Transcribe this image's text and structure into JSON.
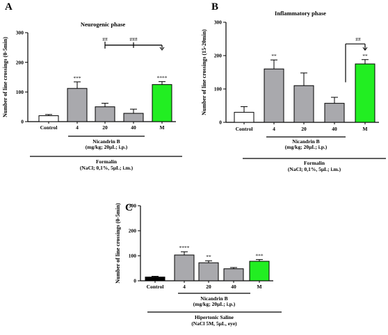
{
  "colors": {
    "control_A": "#ffffff",
    "control_C": "#000000",
    "nicandrin": "#a9a9ad",
    "morphine": "#22ee22",
    "axis": "#000000"
  },
  "chart_data": [
    {
      "type": "bar",
      "letter": "A",
      "title": "Neurogenic phase",
      "ylabel": "Number of line crossings (0-5min)",
      "ylim": [
        0,
        300
      ],
      "yticks": [
        0,
        100,
        200,
        300
      ],
      "categories": [
        "Control",
        "4",
        "20",
        "40",
        "M"
      ],
      "values": [
        20,
        112,
        50,
        28,
        125
      ],
      "errors": [
        4,
        22,
        12,
        14,
        10
      ],
      "significance": [
        "",
        "***",
        "",
        "",
        "****"
      ],
      "bar_colors": [
        "control_A",
        "nicandrin",
        "nicandrin",
        "nicandrin",
        "morphine"
      ],
      "group_label_1": [
        "Nicandrin B",
        "(mg/kg; 20µL; i.p.)"
      ],
      "group_label_2": [
        "Formalin",
        "(NaCl; 0,1%, 5µL; i.m.)"
      ],
      "brackets": [
        {
          "from": 2,
          "to": 4,
          "mark_positions": [
            2,
            3
          ],
          "labels": [
            "##",
            "###"
          ]
        }
      ]
    },
    {
      "type": "bar",
      "letter": "B",
      "title": "Inflammatory phase",
      "ylabel": "Number of line crossings (15-20min)",
      "ylim": [
        0,
        300
      ],
      "yticks": [
        0,
        100,
        200,
        300
      ],
      "categories": [
        "Control",
        "4",
        "20",
        "40",
        "M"
      ],
      "values": [
        30,
        160,
        110,
        57,
        175
      ],
      "errors": [
        17,
        27,
        38,
        18,
        13
      ],
      "significance": [
        "",
        "**",
        "",
        "",
        "**"
      ],
      "bar_colors": [
        "control_A",
        "nicandrin",
        "nicandrin",
        "nicandrin",
        "morphine"
      ],
      "group_label_1": [
        "Nicandrin B",
        "(mg/kg; 20µL; i.p.)"
      ],
      "group_label_2": [
        "Formalin",
        "(NaCl; 0,1%, 5µL; i.m.)"
      ],
      "brackets": [
        {
          "from": 3,
          "to": 4,
          "mark_positions": [
            3.5
          ],
          "labels": [
            "##"
          ]
        }
      ]
    },
    {
      "type": "bar",
      "letter": "C",
      "title": "",
      "ylabel": "Number of line crossings (0-5min)",
      "ylim": [
        0,
        300
      ],
      "yticks": [
        0,
        100,
        200,
        300
      ],
      "categories": [
        "Control",
        "4",
        "20",
        "40",
        "M"
      ],
      "values": [
        15,
        103,
        72,
        48,
        78
      ],
      "errors": [
        3,
        13,
        8,
        5,
        7
      ],
      "significance": [
        "",
        "****",
        "**",
        "",
        "***"
      ],
      "bar_colors": [
        "control_C",
        "nicandrin",
        "nicandrin",
        "nicandrin",
        "morphine"
      ],
      "group_label_1": [
        "Nicandrin B",
        "(mg/kg; 20µL; i.p.)"
      ],
      "group_label_2": [
        "Hipertonic Saline",
        "(NaCl 5M, 5µL, eye)"
      ],
      "brackets": []
    }
  ]
}
